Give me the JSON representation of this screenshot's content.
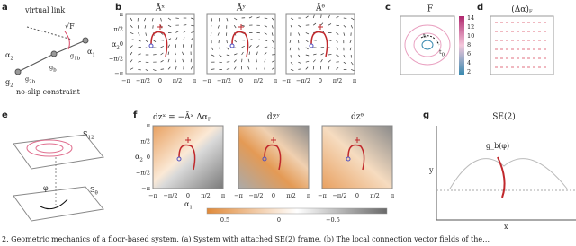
{
  "panel_labels": [
    "a",
    "b",
    "c",
    "d",
    "e",
    "f",
    "g"
  ],
  "ticks": [
    "π",
    "π/2",
    "0",
    "−π/2",
    "−π"
  ],
  "a": {
    "virtual_link": "virtual link",
    "sqrtF": "√F",
    "alpha2": {
      "base": "α",
      "sub": "2"
    },
    "alpha1": {
      "base": "α",
      "sub": "1"
    },
    "g2b": {
      "base": "g",
      "sub": "2b"
    },
    "gb": {
      "base": "g",
      "sub": "b"
    },
    "g1b": {
      "base": "g",
      "sub": "1b"
    },
    "g2": {
      "base": "g",
      "sub": "2"
    },
    "constraint": "no-slip constraint"
  },
  "b": {
    "titles": [
      "Āˣ",
      "Āʸ",
      "Āᶿ"
    ],
    "y_label": {
      "base": "α",
      "sub": "2"
    }
  },
  "c": {
    "title": "F",
    "colorbar_ticks": [
      14,
      12,
      10,
      8,
      6,
      4,
      2
    ],
    "t1": {
      "base": "t",
      "sub": "1"
    },
    "t0": {
      "base": "t",
      "sub": "0"
    }
  },
  "d": {
    "title": {
      "base": "(Δα)",
      "sub": "F"
    }
  },
  "e": {
    "s12": {
      "base": "S",
      "sub": "12"
    },
    "stheta": {
      "base": "S",
      "sub": "θ"
    },
    "phi": "φ"
  },
  "f": {
    "title1": {
      "base": "dzˣ = −Āˣ Δα",
      "sub": "F"
    },
    "title2": "dzʸ",
    "title3": "dzᶿ",
    "y_label": {
      "base": "α",
      "sub": "2"
    },
    "x_label": {
      "base": "α",
      "sub": "1"
    },
    "colorbar_ticks": [
      "0.5",
      "0",
      "−0.5"
    ]
  },
  "g": {
    "title": "SE(2)",
    "curve_label": "g_b(φ)",
    "x_label": "x",
    "y_label": "y"
  },
  "caption": "2.  Geometric mechanics of a floor-based system. (a) System with attached SE(2) frame. (b) The local connection vector fields of the…"
}
